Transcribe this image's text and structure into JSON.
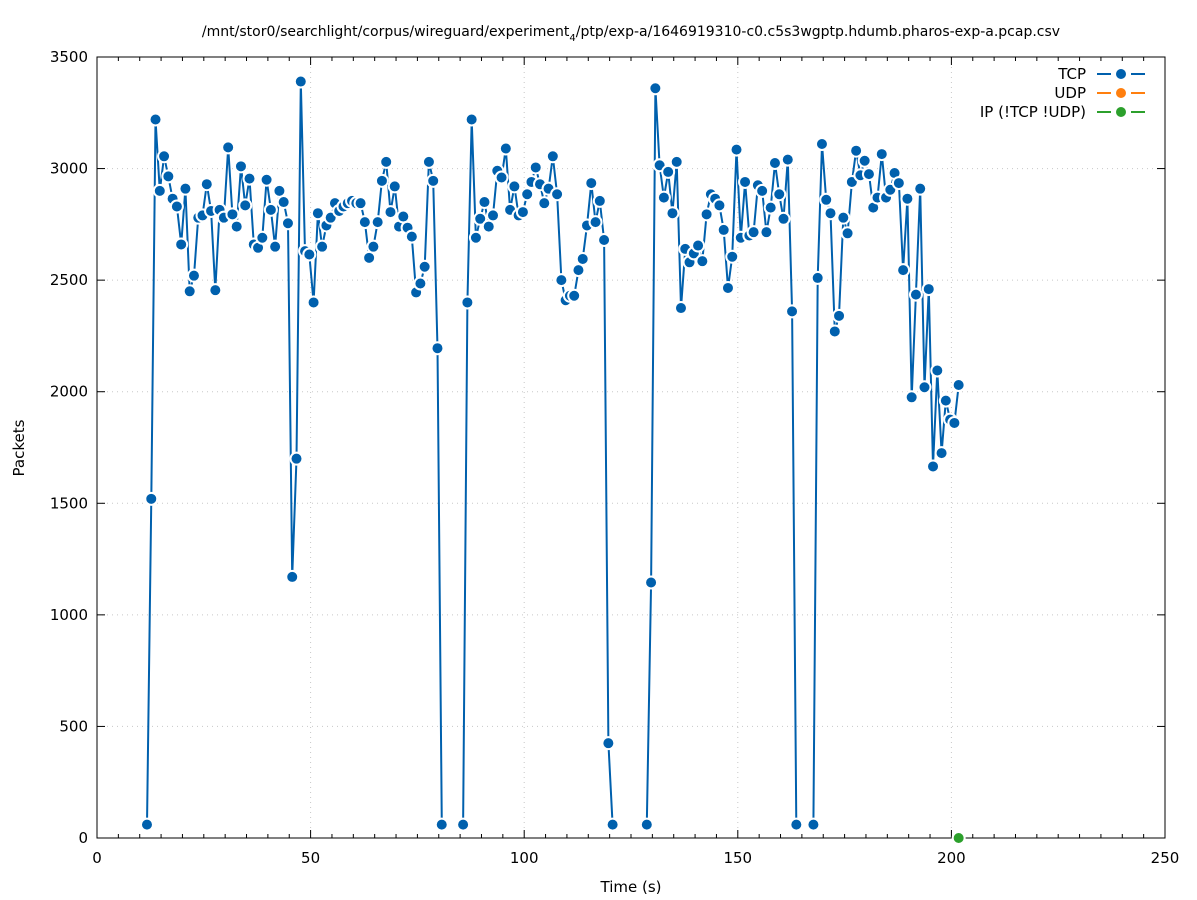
{
  "chart_data": {
    "type": "line",
    "title_prefix": "/mnt/stor0/searchlight/corpus/wireguard/experiment",
    "title_subscript": "4",
    "title_suffix": "/ptp/exp-a/1646919310-c0.c5s3wgptp.hdumb.pharos-exp-a.pcap.csv",
    "xlabel": "Time (s)",
    "ylabel": "Packets",
    "xlim": [
      0,
      250
    ],
    "ylim": [
      0,
      3500
    ],
    "xticks": [
      0,
      50,
      100,
      150,
      200,
      250
    ],
    "yticks": [
      0,
      500,
      1000,
      1500,
      2000,
      2500,
      3000,
      3500
    ],
    "grid": true,
    "legend_position": "top-right",
    "series": [
      {
        "name": "TCP",
        "color": "#0060ad",
        "segments": [
          [
            [
              11.7,
              60
            ],
            [
              12.7,
              1520
            ],
            [
              13.7,
              3220
            ],
            [
              14.7,
              2900
            ],
            [
              15.7,
              3055
            ],
            [
              16.7,
              2965
            ],
            [
              17.7,
              2865
            ],
            [
              18.7,
              2830
            ],
            [
              19.7,
              2660
            ],
            [
              20.7,
              2910
            ],
            [
              21.7,
              2450
            ],
            [
              22.7,
              2520
            ],
            [
              23.7,
              2780
            ],
            [
              24.7,
              2790
            ],
            [
              25.7,
              2930
            ],
            [
              26.7,
              2810
            ],
            [
              27.7,
              2455
            ],
            [
              28.7,
              2815
            ],
            [
              29.7,
              2780
            ],
            [
              30.7,
              3095
            ],
            [
              31.7,
              2795
            ],
            [
              32.7,
              2740
            ],
            [
              33.7,
              3010
            ],
            [
              34.7,
              2835
            ],
            [
              35.7,
              2955
            ],
            [
              36.7,
              2660
            ],
            [
              37.7,
              2645
            ],
            [
              38.7,
              2690
            ],
            [
              39.7,
              2950
            ],
            [
              40.7,
              2815
            ],
            [
              41.7,
              2650
            ],
            [
              42.7,
              2900
            ],
            [
              43.7,
              2850
            ],
            [
              44.7,
              2755
            ],
            [
              45.7,
              1170
            ],
            [
              46.7,
              1700
            ],
            [
              47.7,
              3390
            ],
            [
              48.7,
              2630
            ],
            [
              49.7,
              2615
            ],
            [
              50.7,
              2400
            ],
            [
              51.7,
              2800
            ],
            [
              52.7,
              2650
            ],
            [
              53.7,
              2745
            ],
            [
              54.7,
              2780
            ],
            [
              55.7,
              2845
            ],
            [
              56.7,
              2810
            ],
            [
              57.7,
              2830
            ],
            [
              58.7,
              2845
            ],
            [
              59.7,
              2855
            ],
            [
              60.7,
              2845
            ],
            [
              61.7,
              2845
            ],
            [
              62.7,
              2760
            ],
            [
              63.7,
              2600
            ],
            [
              64.7,
              2650
            ],
            [
              65.7,
              2760
            ],
            [
              66.7,
              2945
            ],
            [
              67.7,
              3030
            ],
            [
              68.7,
              2805
            ],
            [
              69.7,
              2920
            ],
            [
              70.7,
              2740
            ],
            [
              71.7,
              2785
            ],
            [
              72.7,
              2735
            ],
            [
              73.7,
              2695
            ],
            [
              74.7,
              2445
            ],
            [
              75.7,
              2485
            ],
            [
              76.7,
              2560
            ],
            [
              77.7,
              3030
            ],
            [
              78.7,
              2945
            ],
            [
              79.7,
              2195
            ],
            [
              80.7,
              60
            ]
          ],
          [
            [
              85.7,
              60
            ],
            [
              86.7,
              2400
            ],
            [
              87.7,
              3220
            ],
            [
              88.7,
              2690
            ],
            [
              89.7,
              2775
            ],
            [
              90.7,
              2850
            ],
            [
              91.7,
              2740
            ],
            [
              92.7,
              2790
            ],
            [
              93.7,
              2990
            ],
            [
              94.7,
              2960
            ],
            [
              95.7,
              3090
            ],
            [
              96.7,
              2815
            ],
            [
              97.7,
              2920
            ],
            [
              98.7,
              2790
            ],
            [
              99.7,
              2805
            ],
            [
              100.7,
              2885
            ],
            [
              101.7,
              2940
            ],
            [
              102.7,
              3005
            ],
            [
              103.7,
              2930
            ],
            [
              104.7,
              2845
            ],
            [
              105.7,
              2910
            ],
            [
              106.7,
              3055
            ],
            [
              107.7,
              2885
            ],
            [
              108.7,
              2500
            ],
            [
              109.7,
              2410
            ],
            [
              110.7,
              2430
            ],
            [
              111.7,
              2430
            ],
            [
              112.7,
              2545
            ],
            [
              113.7,
              2595
            ],
            [
              114.7,
              2745
            ],
            [
              115.7,
              2935
            ],
            [
              116.7,
              2760
            ],
            [
              117.7,
              2855
            ],
            [
              118.7,
              2680
            ],
            [
              119.7,
              425
            ],
            [
              120.7,
              60
            ]
          ],
          [
            [
              128.7,
              60
            ],
            [
              129.7,
              1145
            ],
            [
              130.7,
              3360
            ],
            [
              131.7,
              3015
            ],
            [
              132.7,
              2870
            ],
            [
              133.7,
              2985
            ],
            [
              134.7,
              2800
            ],
            [
              135.7,
              3030
            ],
            [
              136.7,
              2375
            ],
            [
              137.7,
              2640
            ],
            [
              138.7,
              2580
            ],
            [
              139.7,
              2620
            ],
            [
              140.7,
              2655
            ],
            [
              141.7,
              2585
            ],
            [
              142.7,
              2795
            ],
            [
              143.7,
              2885
            ],
            [
              144.7,
              2865
            ],
            [
              145.7,
              2835
            ],
            [
              146.7,
              2725
            ],
            [
              147.7,
              2465
            ],
            [
              148.7,
              2605
            ],
            [
              149.7,
              3085
            ],
            [
              150.7,
              2690
            ],
            [
              151.7,
              2940
            ],
            [
              152.7,
              2700
            ],
            [
              153.7,
              2715
            ],
            [
              154.7,
              2925
            ],
            [
              155.7,
              2900
            ],
            [
              156.7,
              2715
            ],
            [
              157.7,
              2825
            ],
            [
              158.7,
              3025
            ],
            [
              159.7,
              2885
            ],
            [
              160.7,
              2775
            ],
            [
              161.7,
              3040
            ],
            [
              162.7,
              2360
            ],
            [
              163.7,
              60
            ]
          ],
          [
            [
              167.7,
              60
            ],
            [
              168.7,
              2510
            ],
            [
              169.7,
              3110
            ],
            [
              170.7,
              2860
            ],
            [
              171.7,
              2800
            ],
            [
              172.7,
              2270
            ],
            [
              173.7,
              2340
            ],
            [
              174.7,
              2780
            ],
            [
              175.7,
              2710
            ],
            [
              176.7,
              2940
            ],
            [
              177.7,
              3080
            ],
            [
              178.7,
              2970
            ],
            [
              179.7,
              3035
            ],
            [
              180.7,
              2975
            ],
            [
              181.7,
              2825
            ],
            [
              182.7,
              2870
            ],
            [
              183.7,
              3065
            ],
            [
              184.7,
              2870
            ],
            [
              185.7,
              2905
            ],
            [
              186.7,
              2980
            ],
            [
              187.7,
              2935
            ],
            [
              188.7,
              2545
            ],
            [
              189.7,
              2865
            ],
            [
              190.7,
              1975
            ],
            [
              191.7,
              2435
            ],
            [
              192.7,
              2910
            ],
            [
              193.7,
              2020
            ],
            [
              194.7,
              2460
            ],
            [
              195.7,
              1665
            ],
            [
              196.7,
              2095
            ],
            [
              197.7,
              1725
            ],
            [
              198.7,
              1960
            ],
            [
              199.7,
              1875
            ],
            [
              200.7,
              1860
            ],
            [
              201.7,
              2030
            ]
          ]
        ]
      },
      {
        "name": "UDP",
        "color": "#ff7f0e",
        "segments": []
      },
      {
        "name": "IP (!TCP  !UDP)",
        "color": "#2ca02c",
        "segments": [
          [
            [
              201.7,
              0
            ]
          ]
        ]
      }
    ]
  }
}
